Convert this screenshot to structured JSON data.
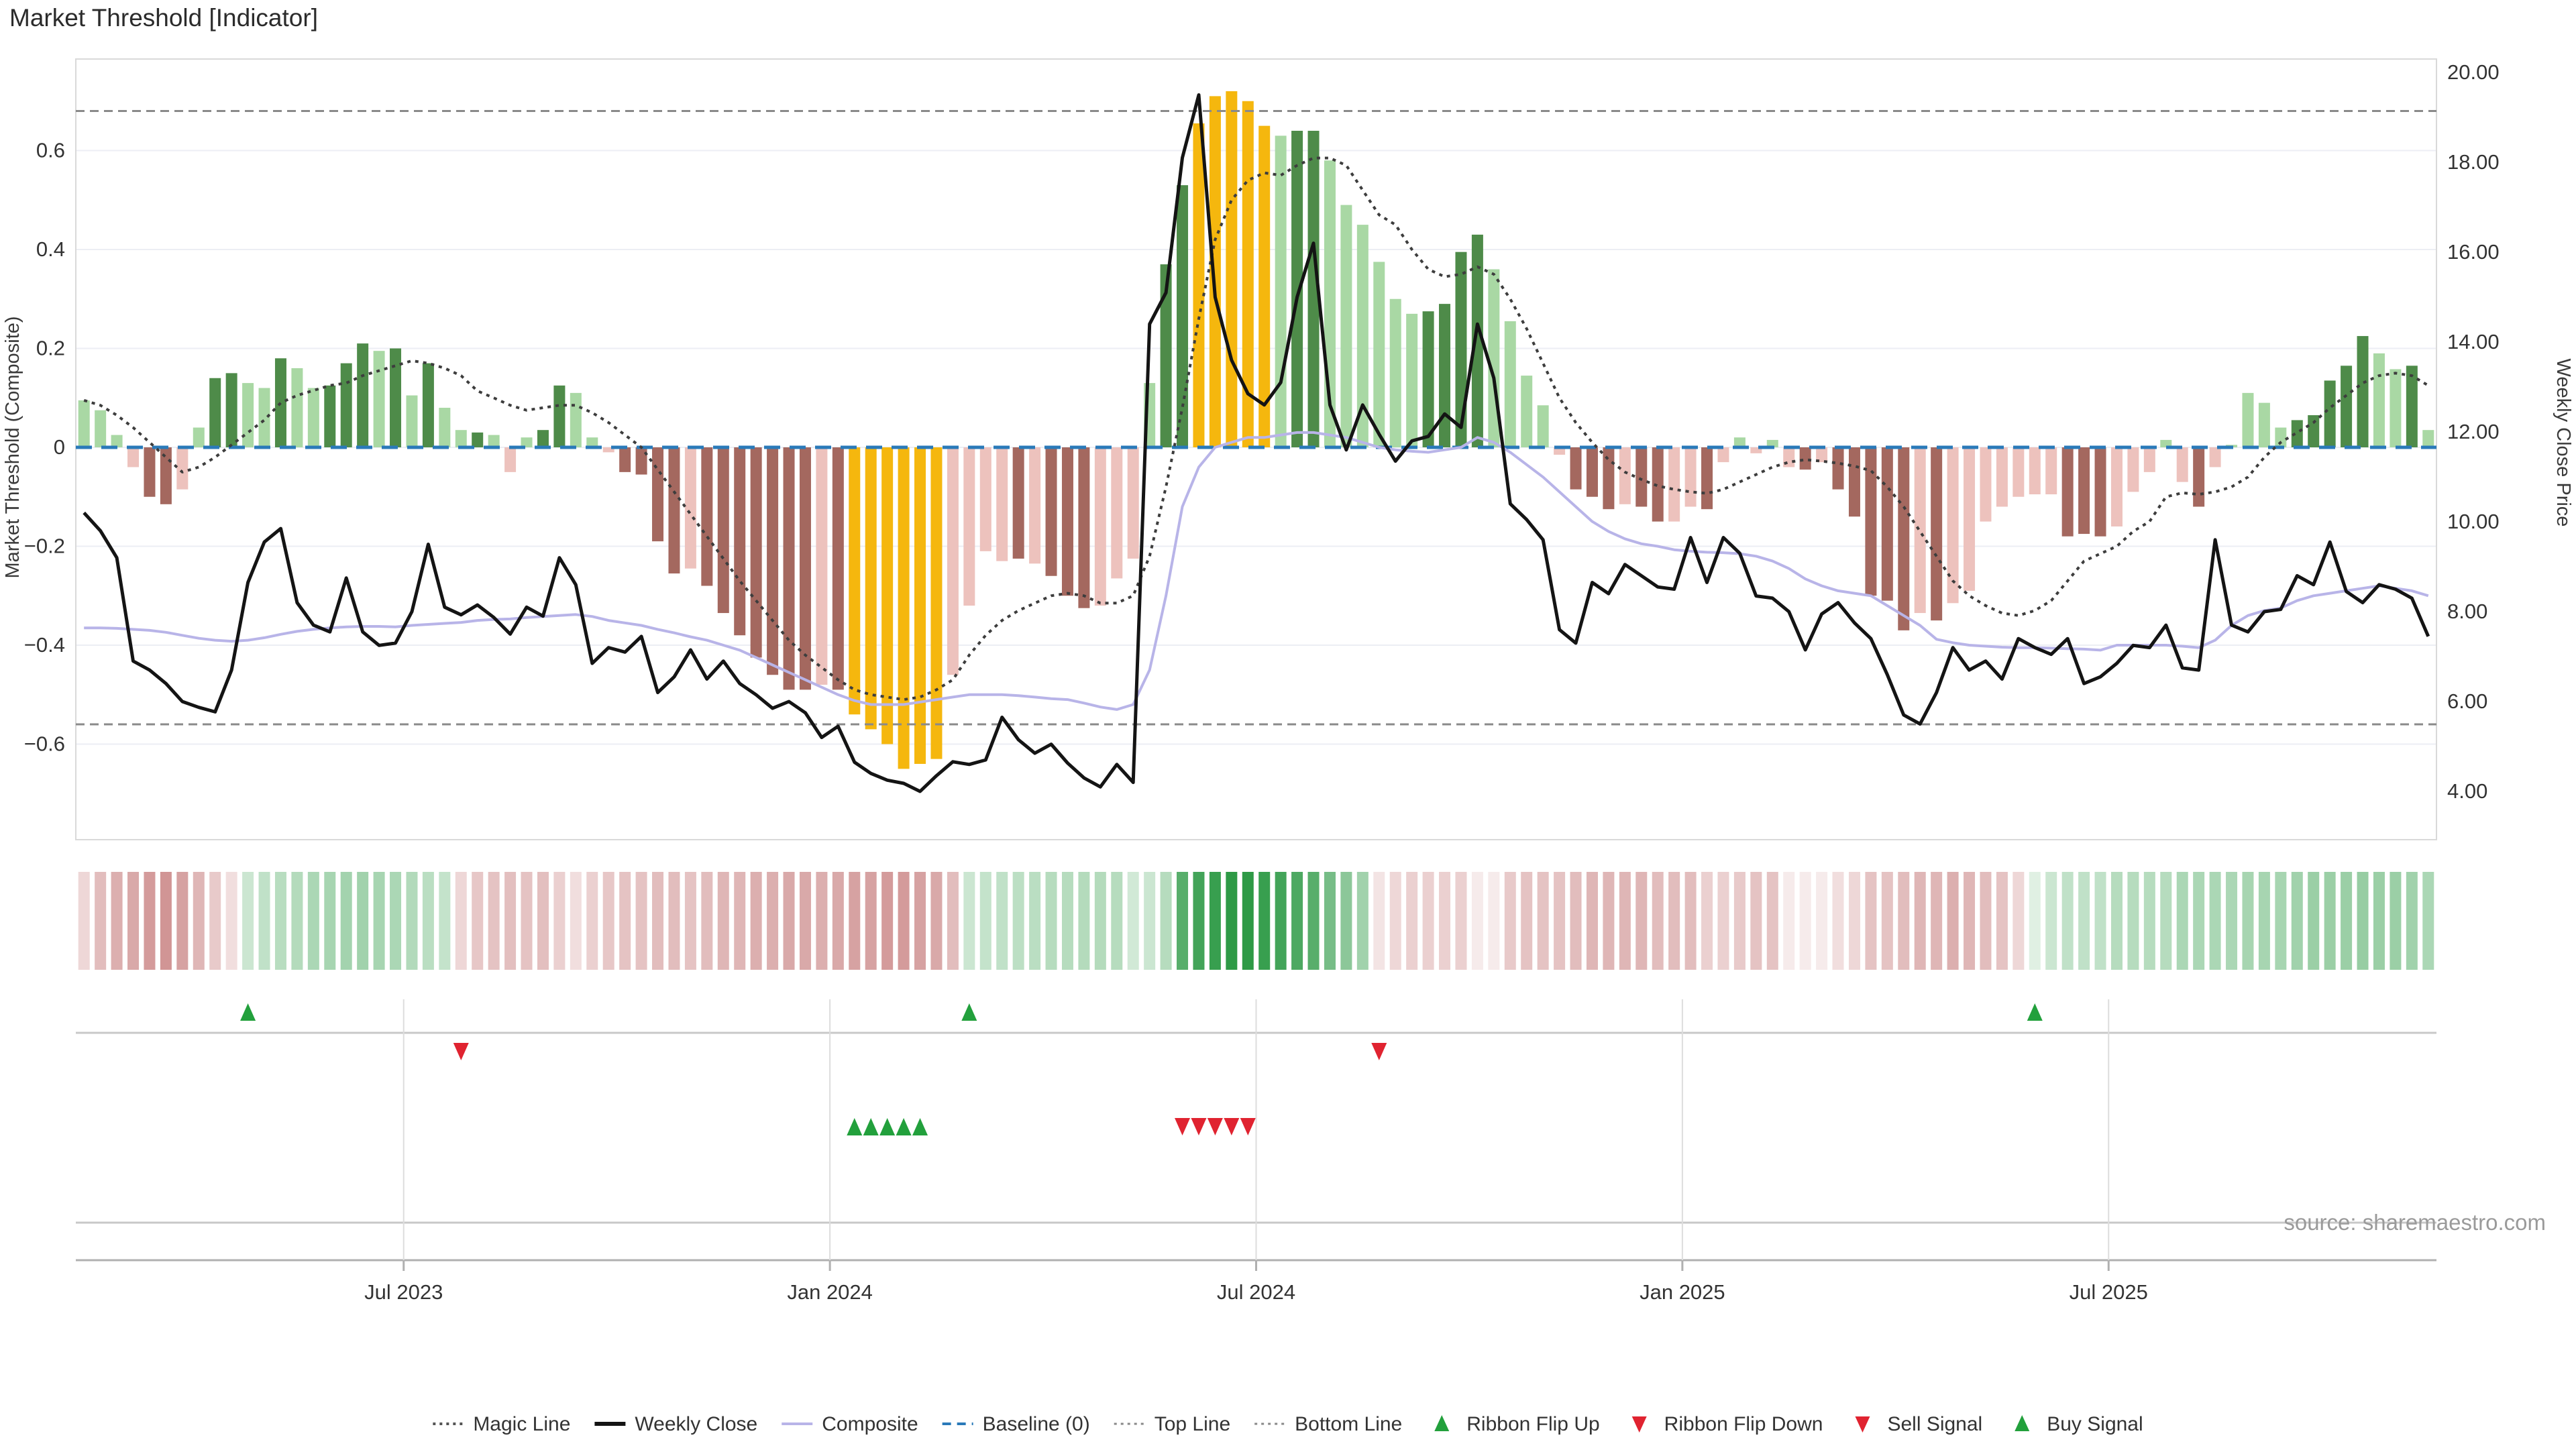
{
  "title": "Market Threshold [Indicator]",
  "source": "source: sharemaestro.com",
  "axes": {
    "left_label": "Market Threshold (Composite)",
    "right_label": "Weekly Close Price",
    "left_ticks": [
      {
        "v": 0.6,
        "label": "0.6"
      },
      {
        "v": 0.4,
        "label": "0.4"
      },
      {
        "v": 0.2,
        "label": "0.2"
      },
      {
        "v": 0.0,
        "label": "0"
      },
      {
        "v": -0.2,
        "label": "−0.2"
      },
      {
        "v": -0.4,
        "label": "−0.4"
      },
      {
        "v": -0.6,
        "label": "−0.6"
      }
    ],
    "right_ticks": [
      {
        "v": 20,
        "label": "20.00"
      },
      {
        "v": 18,
        "label": "18.00"
      },
      {
        "v": 16,
        "label": "16.00"
      },
      {
        "v": 14,
        "label": "14.00"
      },
      {
        "v": 12,
        "label": "12.00"
      },
      {
        "v": 10,
        "label": "10.00"
      },
      {
        "v": 8,
        "label": "8.00"
      },
      {
        "v": 6,
        "label": "6.00"
      },
      {
        "v": 4,
        "label": "4.00"
      }
    ],
    "x_ticks": [
      {
        "week": 20,
        "label": "Jul 2023"
      },
      {
        "week": 46,
        "label": "Jan 2024"
      },
      {
        "week": 72,
        "label": "Jul 2024"
      },
      {
        "week": 98,
        "label": "Jan 2025"
      },
      {
        "week": 124,
        "label": "Jul 2025"
      }
    ]
  },
  "chart_data": {
    "type": "combo",
    "x_unit": "week",
    "n_weeks": 144,
    "top_line": 0.68,
    "bottom_line": -0.56,
    "baseline": 0,
    "histogram": {
      "name": "Market Threshold Histogram",
      "values": [
        0.095,
        0.075,
        0.025,
        -0.04,
        -0.1,
        -0.115,
        -0.085,
        0.04,
        0.14,
        0.15,
        0.13,
        0.12,
        0.18,
        0.16,
        0.12,
        0.125,
        0.17,
        0.21,
        0.195,
        0.2,
        0.105,
        0.17,
        0.08,
        0.035,
        0.03,
        0.025,
        -0.05,
        0.02,
        0.035,
        0.125,
        0.11,
        0.02,
        -0.01,
        -0.05,
        -0.055,
        -0.19,
        -0.255,
        -0.245,
        -0.28,
        -0.335,
        -0.38,
        -0.425,
        -0.46,
        -0.49,
        -0.49,
        -0.48,
        -0.49,
        -0.54,
        -0.57,
        -0.6,
        -0.65,
        -0.64,
        -0.63,
        -0.46,
        -0.32,
        -0.21,
        -0.23,
        -0.225,
        -0.235,
        -0.26,
        -0.3,
        -0.325,
        -0.32,
        -0.265,
        -0.225,
        0.13,
        0.37,
        0.53,
        0.655,
        0.71,
        0.72,
        0.7,
        0.65,
        0.63,
        0.64,
        0.64,
        0.58,
        0.49,
        0.45,
        0.375,
        0.3,
        0.27,
        0.275,
        0.29,
        0.395,
        0.43,
        0.36,
        0.255,
        0.145,
        0.085,
        -0.015,
        -0.085,
        -0.1,
        -0.125,
        -0.115,
        -0.12,
        -0.15,
        -0.15,
        -0.12,
        -0.125,
        -0.03,
        0.02,
        -0.012,
        0.015,
        -0.04,
        -0.045,
        -0.03,
        -0.085,
        -0.14,
        -0.3,
        -0.31,
        -0.37,
        -0.335,
        -0.35,
        -0.315,
        -0.29,
        -0.15,
        -0.12,
        -0.1,
        -0.095,
        -0.095,
        -0.18,
        -0.175,
        -0.18,
        -0.16,
        -0.09,
        -0.05,
        0.015,
        -0.07,
        -0.12,
        -0.04,
        0.005,
        0.11,
        0.09,
        0.04,
        0.055,
        0.065,
        0.135,
        0.165,
        0.225,
        0.19,
        0.158,
        0.165,
        0.035
      ],
      "color_classes": [
        "lg",
        "lg",
        "lg",
        "pk",
        "dr",
        "dr",
        "pk",
        "lg",
        "dg",
        "dg",
        "lg",
        "lg",
        "dg",
        "lg",
        "lg",
        "dg",
        "dg",
        "dg",
        "lg",
        "dg",
        "lg",
        "dg",
        "lg",
        "lg",
        "dg",
        "lg",
        "pk",
        "lg",
        "dg",
        "dg",
        "lg",
        "lg",
        "pk",
        "dr",
        "dr",
        "dr",
        "dr",
        "pk",
        "dr",
        "dr",
        "dr",
        "dr",
        "dr",
        "dr",
        "dr",
        "pk",
        "dr",
        "gold",
        "gold",
        "gold",
        "gold",
        "gold",
        "gold",
        "pk",
        "pk",
        "pk",
        "pk",
        "dr",
        "pk",
        "dr",
        "dr",
        "dr",
        "pk",
        "pk",
        "pk",
        "lg",
        "dg",
        "dg",
        "gold",
        "gold",
        "gold",
        "gold",
        "gold",
        "lg",
        "dg",
        "dg",
        "lg",
        "lg",
        "lg",
        "lg",
        "lg",
        "lg",
        "dg",
        "dg",
        "dg",
        "dg",
        "lg",
        "lg",
        "lg",
        "lg",
        "pk",
        "dr",
        "dr",
        "dr",
        "pk",
        "dr",
        "dr",
        "pk",
        "pk",
        "dr",
        "pk",
        "lg",
        "pk",
        "lg",
        "pk",
        "dr",
        "pk",
        "dr",
        "dr",
        "dr",
        "dr",
        "dr",
        "pk",
        "dr",
        "pk",
        "pk",
        "pk",
        "pk",
        "pk",
        "pk",
        "pk",
        "dr",
        "dr",
        "dr",
        "pk",
        "pk",
        "pk",
        "lg",
        "pk",
        "dr",
        "pk",
        "lg",
        "lg",
        "lg",
        "lg",
        "dg",
        "dg",
        "dg",
        "dg",
        "dg",
        "lg",
        "lg",
        "dg",
        "lg"
      ]
    },
    "weekly_close": {
      "name": "Weekly Close",
      "axis": "price",
      "values": [
        10.2,
        9.8,
        9.2,
        6.9,
        6.7,
        6.4,
        6.0,
        5.87,
        5.77,
        6.7,
        8.65,
        9.55,
        9.85,
        8.2,
        7.7,
        7.55,
        8.75,
        7.55,
        7.25,
        7.3,
        8.0,
        9.5,
        8.1,
        7.93,
        8.15,
        7.87,
        7.5,
        8.1,
        7.9,
        9.2,
        8.6,
        6.85,
        7.2,
        7.1,
        7.45,
        6.2,
        6.55,
        7.15,
        6.5,
        6.9,
        6.4,
        6.15,
        5.85,
        6.0,
        5.75,
        5.2,
        5.45,
        4.65,
        4.4,
        4.25,
        4.18,
        4.0,
        4.35,
        4.66,
        4.6,
        4.7,
        5.65,
        5.15,
        4.85,
        5.05,
        4.63,
        4.3,
        4.1,
        4.6,
        4.2,
        14.4,
        15.1,
        18.1,
        19.5,
        15.0,
        13.6,
        12.85,
        12.6,
        13.1,
        15.0,
        16.2,
        12.6,
        11.6,
        12.6,
        11.95,
        11.35,
        11.8,
        11.9,
        12.4,
        12.1,
        14.4,
        13.2,
        10.4,
        10.05,
        9.6,
        7.6,
        7.3,
        8.65,
        8.4,
        9.05,
        8.8,
        8.55,
        8.5,
        9.65,
        8.65,
        9.65,
        9.3,
        8.35,
        8.3,
        8.0,
        7.15,
        7.95,
        8.2,
        7.75,
        7.4,
        6.6,
        5.7,
        5.5,
        6.2,
        7.2,
        6.7,
        6.9,
        6.5,
        7.4,
        7.2,
        7.05,
        7.4,
        6.4,
        6.55,
        6.85,
        7.25,
        7.2,
        7.7,
        6.75,
        6.7,
        9.6,
        7.7,
        7.55,
        8.0,
        8.05,
        8.8,
        8.6,
        9.55,
        8.45,
        8.2,
        8.6,
        8.5,
        8.3,
        7.45
      ]
    },
    "composite_line": {
      "name": "Composite",
      "values": [
        -0.365,
        -0.365,
        -0.366,
        -0.368,
        -0.37,
        -0.374,
        -0.38,
        -0.386,
        -0.39,
        -0.392,
        -0.39,
        -0.385,
        -0.378,
        -0.372,
        -0.368,
        -0.365,
        -0.363,
        -0.362,
        -0.362,
        -0.363,
        -0.36,
        -0.358,
        -0.356,
        -0.354,
        -0.35,
        -0.348,
        -0.347,
        -0.344,
        -0.342,
        -0.34,
        -0.338,
        -0.342,
        -0.35,
        -0.355,
        -0.36,
        -0.368,
        -0.375,
        -0.383,
        -0.39,
        -0.4,
        -0.41,
        -0.425,
        -0.44,
        -0.455,
        -0.47,
        -0.485,
        -0.5,
        -0.512,
        -0.52,
        -0.52,
        -0.52,
        -0.515,
        -0.51,
        -0.505,
        -0.5,
        -0.5,
        -0.5,
        -0.502,
        -0.505,
        -0.508,
        -0.51,
        -0.517,
        -0.525,
        -0.53,
        -0.52,
        -0.45,
        -0.3,
        -0.12,
        -0.04,
        0.0,
        0.01,
        0.02,
        0.02,
        0.025,
        0.03,
        0.03,
        0.025,
        0.02,
        0.01,
        0.0,
        -0.005,
        -0.008,
        -0.01,
        -0.005,
        0.0,
        0.02,
        0.01,
        -0.01,
        -0.035,
        -0.06,
        -0.09,
        -0.12,
        -0.15,
        -0.17,
        -0.185,
        -0.195,
        -0.2,
        -0.207,
        -0.21,
        -0.212,
        -0.213,
        -0.215,
        -0.22,
        -0.23,
        -0.245,
        -0.266,
        -0.28,
        -0.29,
        -0.295,
        -0.3,
        -0.32,
        -0.34,
        -0.36,
        -0.388,
        -0.395,
        -0.4,
        -0.402,
        -0.404,
        -0.405,
        -0.405,
        -0.406,
        -0.407,
        -0.408,
        -0.41,
        -0.4,
        -0.4,
        -0.4,
        -0.4,
        -0.402,
        -0.405,
        -0.39,
        -0.36,
        -0.34,
        -0.33,
        -0.325,
        -0.31,
        -0.3,
        -0.295,
        -0.29,
        -0.285,
        -0.28,
        -0.285,
        -0.29,
        -0.3
      ]
    },
    "magic_line": {
      "name": "Magic Line",
      "values": [
        0.095,
        0.085,
        0.065,
        0.04,
        0.01,
        -0.02,
        -0.05,
        -0.04,
        -0.02,
        0.005,
        0.03,
        0.055,
        0.09,
        0.105,
        0.115,
        0.125,
        0.13,
        0.145,
        0.155,
        0.165,
        0.175,
        0.17,
        0.16,
        0.145,
        0.114,
        0.1,
        0.085,
        0.075,
        0.08,
        0.085,
        0.085,
        0.07,
        0.05,
        0.025,
        0.0,
        -0.045,
        -0.09,
        -0.135,
        -0.18,
        -0.225,
        -0.27,
        -0.31,
        -0.35,
        -0.39,
        -0.42,
        -0.445,
        -0.47,
        -0.49,
        -0.5,
        -0.505,
        -0.51,
        -0.505,
        -0.49,
        -0.47,
        -0.42,
        -0.38,
        -0.35,
        -0.33,
        -0.315,
        -0.3,
        -0.295,
        -0.3,
        -0.315,
        -0.315,
        -0.3,
        -0.22,
        -0.08,
        0.08,
        0.26,
        0.42,
        0.5,
        0.54,
        0.555,
        0.55,
        0.57,
        0.585,
        0.585,
        0.57,
        0.52,
        0.47,
        0.45,
        0.4,
        0.36,
        0.345,
        0.35,
        0.365,
        0.35,
        0.3,
        0.24,
        0.17,
        0.1,
        0.05,
        0.01,
        -0.025,
        -0.05,
        -0.065,
        -0.078,
        -0.085,
        -0.09,
        -0.093,
        -0.085,
        -0.07,
        -0.055,
        -0.04,
        -0.03,
        -0.025,
        -0.028,
        -0.032,
        -0.038,
        -0.047,
        -0.08,
        -0.12,
        -0.17,
        -0.22,
        -0.27,
        -0.3,
        -0.32,
        -0.335,
        -0.34,
        -0.33,
        -0.31,
        -0.27,
        -0.23,
        -0.215,
        -0.2,
        -0.17,
        -0.15,
        -0.1,
        -0.092,
        -0.095,
        -0.09,
        -0.08,
        -0.06,
        -0.02,
        0.01,
        0.03,
        0.05,
        0.08,
        0.105,
        0.13,
        0.145,
        0.15,
        0.145,
        0.125
      ]
    },
    "ribbon": {
      "name": "Ribbon",
      "values": [
        -0.3,
        -0.5,
        -0.6,
        -0.65,
        -0.75,
        -0.8,
        -0.7,
        -0.55,
        -0.4,
        -0.25,
        0.25,
        0.3,
        0.34,
        0.36,
        0.4,
        0.42,
        0.44,
        0.45,
        0.42,
        0.4,
        0.37,
        0.33,
        0.28,
        -0.3,
        -0.42,
        -0.45,
        -0.48,
        -0.45,
        -0.48,
        -0.35,
        -0.25,
        -0.35,
        -0.42,
        -0.45,
        -0.45,
        -0.5,
        -0.5,
        -0.45,
        -0.5,
        -0.55,
        -0.55,
        -0.6,
        -0.6,
        -0.65,
        -0.65,
        -0.6,
        -0.65,
        -0.7,
        -0.7,
        -0.75,
        -0.75,
        -0.7,
        -0.65,
        -0.5,
        0.25,
        0.28,
        0.3,
        0.32,
        0.33,
        0.35,
        0.35,
        0.36,
        0.36,
        0.35,
        0.22,
        0.25,
        0.35,
        0.8,
        0.9,
        0.95,
        1.0,
        1.0,
        0.95,
        0.9,
        0.85,
        0.8,
        0.65,
        0.55,
        0.45,
        -0.2,
        -0.3,
        -0.35,
        -0.35,
        -0.35,
        -0.35,
        -0.15,
        -0.15,
        -0.4,
        -0.45,
        -0.45,
        -0.45,
        -0.5,
        -0.55,
        -0.55,
        -0.55,
        -0.55,
        -0.5,
        -0.5,
        -0.5,
        -0.35,
        -0.35,
        -0.4,
        -0.45,
        -0.45,
        -0.15,
        -0.15,
        -0.15,
        -0.25,
        -0.3,
        -0.45,
        -0.45,
        -0.5,
        -0.55,
        -0.55,
        -0.6,
        -0.55,
        -0.5,
        -0.45,
        -0.3,
        0.15,
        0.25,
        0.3,
        0.3,
        0.3,
        0.35,
        0.35,
        0.35,
        0.35,
        0.4,
        0.4,
        0.4,
        0.4,
        0.42,
        0.42,
        0.42,
        0.45,
        0.48,
        0.48,
        0.48,
        0.5,
        0.48,
        0.48,
        0.45,
        0.4
      ]
    },
    "signals": {
      "ribbon_flip_up_weeks": [
        10,
        54,
        119
      ],
      "ribbon_flip_down_weeks": [
        23,
        79
      ],
      "buy_signal_weeks": [
        47,
        48,
        49,
        50,
        51
      ],
      "sell_signal_weeks": [
        67,
        68,
        69,
        70,
        71
      ]
    }
  },
  "legend": [
    {
      "label": "Magic Line",
      "swatch": "dotted-dark"
    },
    {
      "label": "Weekly Close",
      "swatch": "solid-black"
    },
    {
      "label": "Composite",
      "swatch": "solid-lavender"
    },
    {
      "label": "Baseline (0)",
      "swatch": "dash-blue"
    },
    {
      "label": "Top Line",
      "swatch": "dotted-gray"
    },
    {
      "label": "Bottom Line",
      "swatch": "dotted-gray"
    },
    {
      "label": "Ribbon Flip Up",
      "swatch": "tri-up"
    },
    {
      "label": "Ribbon Flip Down",
      "swatch": "tri-down"
    },
    {
      "label": "Sell Signal",
      "swatch": "tri-down"
    },
    {
      "label": "Buy Signal",
      "swatch": "tri-up"
    }
  ],
  "colors": {
    "bar_dark_green": "#4e8b49",
    "bar_light_green": "#a9d8a4",
    "bar_dark_red": "#a4685f",
    "bar_light_pink": "#edc2bd",
    "bar_gold": "#f5b70e",
    "close_line": "#141414",
    "composite_line": "#b8b4e8",
    "magic_line": "#3d3d3d",
    "baseline": "#2a7ab9",
    "threshold_line": "#8a8a8a",
    "grid": "#eceef4",
    "spine": "#d9d9d9",
    "signal_green": "#22a03c",
    "signal_red": "#e02330",
    "ribbon_green_full": "#2e9a46",
    "ribbon_red_full": "#c57a7a",
    "text_dark": "#2b2b2b",
    "text_gray": "#3a3a3a",
    "text_source": "#9a9a9a"
  }
}
